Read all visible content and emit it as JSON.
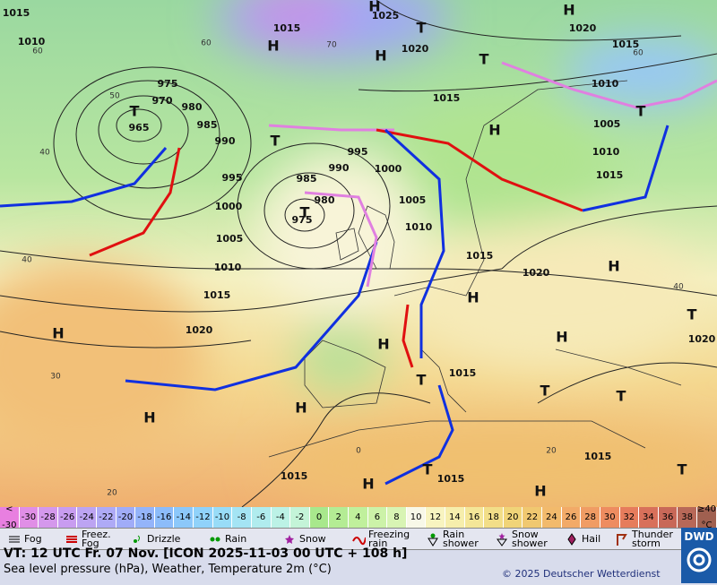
{
  "map": {
    "pressure_centers": [
      "H",
      "H",
      "H",
      "T",
      "H",
      "T",
      "T",
      "T",
      "H",
      "T",
      "H",
      "H",
      "T",
      "H",
      "H",
      "H",
      "T",
      "T",
      "T",
      "H",
      "H",
      "T",
      "H",
      "H",
      "T",
      "T"
    ],
    "isobar_labels": [
      "1015",
      "1025",
      "1015",
      "1020",
      "1010",
      "1020",
      "1015",
      "975",
      "970",
      "980",
      "965",
      "985",
      "990",
      "995",
      "1000",
      "990",
      "995",
      "985",
      "980",
      "1000",
      "1005",
      "975",
      "1010",
      "1005",
      "1015",
      "1010",
      "1020",
      "1015",
      "1020",
      "1015",
      "1015",
      "1015",
      "1015",
      "1010",
      "1010",
      "1015",
      "1005",
      "1020",
      "1015"
    ],
    "grid_labels": [
      "60",
      "50",
      "40",
      "70",
      "60",
      "60",
      "40",
      "30",
      "20",
      "40",
      "20",
      "0"
    ]
  },
  "legend": {
    "temperature_scale": {
      "low_label": "<",
      "low_value": -30,
      "low_color": "#e87fe0",
      "values": [
        -30,
        -28,
        -26,
        -24,
        -22,
        -20,
        -18,
        -16,
        -14,
        -12,
        -10,
        -8,
        -6,
        -4,
        -2,
        0,
        2,
        4,
        6,
        8,
        10,
        12,
        14,
        16,
        18,
        20,
        22,
        24,
        26,
        28,
        30,
        32,
        34,
        36,
        38
      ],
      "colors": [
        "#e08ee6",
        "#d498ec",
        "#c89cf0",
        "#bca4f2",
        "#aeaaf6",
        "#a0acf8",
        "#94b4fa",
        "#8cbcfa",
        "#8cc8fa",
        "#90d2fa",
        "#98dcf8",
        "#a4e4f4",
        "#b0ecee",
        "#bcf2e6",
        "#c4f4d8",
        "#a8e88c",
        "#b4ec94",
        "#c0f09c",
        "#ccf2a8",
        "#d8f4b4",
        "#f8f8e8",
        "#f8f4c0",
        "#f6eeac",
        "#f4e698",
        "#f2de88",
        "#f0d478",
        "#f0c870",
        "#f2ba6c",
        "#f2aa68",
        "#f09c64",
        "#ee8c60",
        "#e67c5c",
        "#d8705a",
        "#c86858",
        "#b86858"
      ],
      "high_label": "≥40",
      "high_color": "#a06050",
      "unit": "°C"
    },
    "weather_symbols": [
      "Fog",
      "Freez. Fog",
      "Drizzle",
      "Rain",
      "Snow",
      "Freezing rain",
      "Rain shower",
      "Snow shower",
      "Hail",
      "Thunder storm"
    ]
  },
  "footer": {
    "valid_time": "VT: 12 UTC Fr.  07 Nov. [ICON 2025-11-03  00 UTC + 108 h]",
    "description": "Sea level pressure (hPa), Weather, Temperature 2m (°C)",
    "copyright": "© 2025 Deutscher Wetterdienst",
    "logo": "DWD"
  }
}
